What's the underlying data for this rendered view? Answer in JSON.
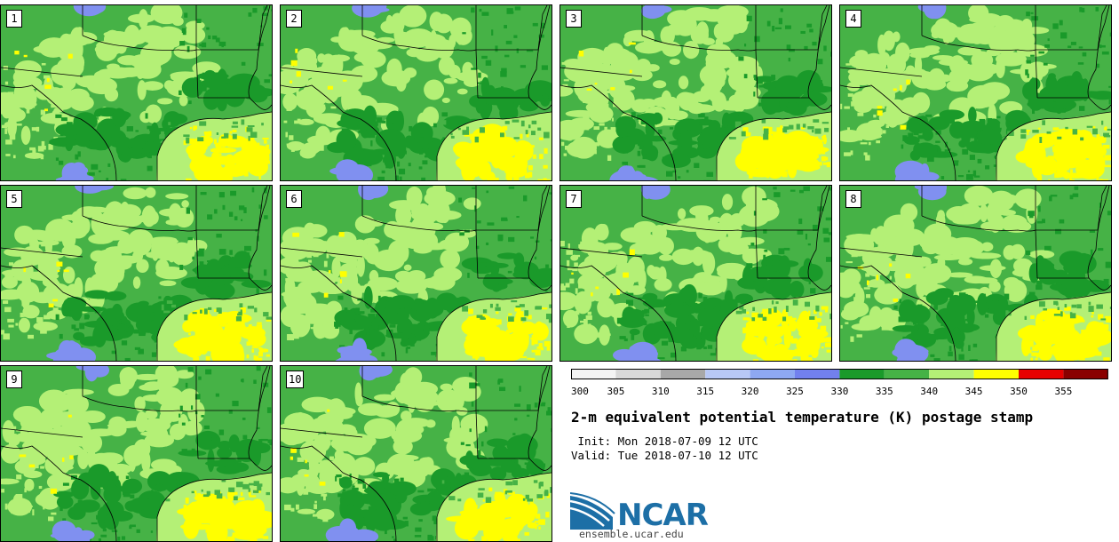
{
  "members": [
    {
      "label": "1"
    },
    {
      "label": "2"
    },
    {
      "label": "3"
    },
    {
      "label": "4"
    },
    {
      "label": "5"
    },
    {
      "label": "6"
    },
    {
      "label": "7"
    },
    {
      "label": "8"
    },
    {
      "label": "9"
    },
    {
      "label": "10"
    }
  ],
  "colorbar": {
    "ticks": [
      "300",
      "305",
      "310",
      "315",
      "320",
      "325",
      "330",
      "335",
      "340",
      "345",
      "350",
      "355"
    ],
    "colors": [
      "#f4f4f4",
      "#d9d9d9",
      "#a8a8a8",
      "#b8c8f5",
      "#8ea8f2",
      "#7280ee",
      "#1a9a2a",
      "#46b246",
      "#b4f076",
      "#ffff00",
      "#e60000",
      "#8a0000"
    ]
  },
  "palette": {
    "dark_green": "#1a9a2a",
    "mid_green": "#46b246",
    "light_green": "#b4f076",
    "yellow": "#ffff00",
    "blue": "#8090f0",
    "boundary": "#000000"
  },
  "title": "2-m equivalent potential temperature (K) postage stamp",
  "init_line": " Init: Mon 2018-07-09 12 UTC",
  "valid_line": "Valid: Tue 2018-07-10 12 UTC",
  "logo": {
    "text": "NCAR",
    "site": "ensemble.ucar.edu"
  }
}
